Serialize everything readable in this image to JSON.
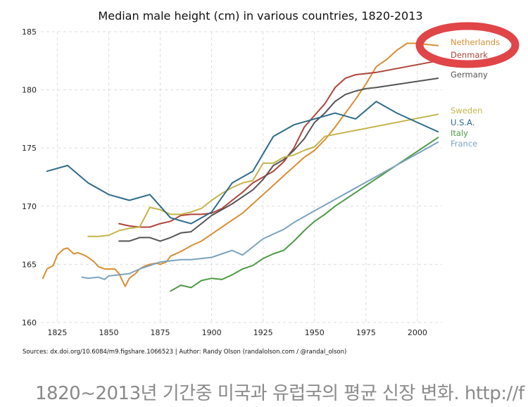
{
  "chart_data": {
    "type": "line",
    "title": "Median male height (cm) in various countries, 1820-2013",
    "xlabel": "",
    "ylabel": "",
    "xlim": [
      1817,
      2012
    ],
    "ylim": [
      160,
      185
    ],
    "x_ticks": [
      1825,
      1850,
      1875,
      1900,
      1925,
      1950,
      1975,
      2000
    ],
    "y_ticks": [
      160,
      165,
      170,
      175,
      180,
      185
    ],
    "grid": true,
    "legend": "labels at line ends (right)",
    "series": [
      {
        "name": "Netherlands",
        "color": "#D98E33",
        "x": [
          1818,
          1820,
          1823,
          1825,
          1828,
          1830,
          1833,
          1835,
          1838,
          1840,
          1843,
          1845,
          1848,
          1850,
          1853,
          1855,
          1858,
          1860,
          1863,
          1865,
          1868,
          1870,
          1873,
          1875,
          1878,
          1880,
          1885,
          1890,
          1895,
          1900,
          1905,
          1910,
          1915,
          1920,
          1925,
          1930,
          1935,
          1940,
          1945,
          1950,
          1955,
          1960,
          1965,
          1970,
          1975,
          1980,
          1985,
          1990,
          1995,
          2000,
          2005,
          2010
        ],
        "y": [
          163.8,
          164.6,
          164.9,
          165.8,
          166.3,
          166.4,
          165.9,
          166.0,
          165.8,
          165.6,
          165.2,
          164.8,
          164.6,
          164.6,
          164.6,
          164.2,
          163.1,
          163.8,
          164.2,
          164.6,
          164.9,
          165.0,
          165.1,
          165.0,
          165.2,
          165.7,
          166.1,
          166.6,
          167.0,
          167.6,
          168.2,
          168.8,
          169.4,
          170.2,
          171.0,
          171.8,
          172.6,
          173.4,
          174.2,
          174.8,
          175.7,
          176.8,
          178.0,
          179.2,
          180.5,
          182.0,
          182.6,
          183.4,
          184.0,
          184.0,
          183.9,
          183.8
        ]
      },
      {
        "name": "Denmark",
        "color": "#B0443A",
        "x": [
          1855,
          1860,
          1865,
          1870,
          1875,
          1880,
          1885,
          1890,
          1895,
          1900,
          1905,
          1910,
          1915,
          1920,
          1925,
          1930,
          1935,
          1940,
          1945,
          1950,
          1955,
          1960,
          1965,
          1970,
          1975,
          1980,
          2010
        ],
        "y": [
          168.5,
          168.3,
          168.2,
          168.2,
          168.5,
          168.7,
          169.2,
          169.3,
          169.3,
          169.4,
          169.8,
          170.5,
          171.2,
          172.0,
          172.5,
          173.0,
          173.8,
          175.0,
          176.8,
          177.8,
          178.8,
          180.2,
          181.0,
          181.3,
          181.4,
          181.5,
          182.5
        ]
      },
      {
        "name": "Germany",
        "color": "#555555",
        "x": [
          1855,
          1860,
          1865,
          1870,
          1875,
          1880,
          1885,
          1890,
          1895,
          1900,
          1905,
          1910,
          1915,
          1920,
          1925,
          1930,
          1935,
          1940,
          1945,
          1950,
          1955,
          1960,
          1965,
          1970,
          1975,
          1980,
          2010
        ],
        "y": [
          167.0,
          167.0,
          167.3,
          167.3,
          167.0,
          167.3,
          167.7,
          167.8,
          168.5,
          169.2,
          169.7,
          170.2,
          170.8,
          171.4,
          172.3,
          173.5,
          174.0,
          174.8,
          175.8,
          177.2,
          178.0,
          179.0,
          179.6,
          179.9,
          180.1,
          180.2,
          181.0
        ]
      },
      {
        "name": "Sweden",
        "color": "#C4B44A",
        "x": [
          1840,
          1845,
          1850,
          1855,
          1860,
          1865,
          1870,
          1875,
          1880,
          1885,
          1890,
          1895,
          1900,
          1905,
          1910,
          1915,
          1920,
          1925,
          1930,
          1935,
          1940,
          1945,
          1950,
          1955,
          2010
        ],
        "y": [
          167.4,
          167.4,
          167.5,
          167.9,
          168.1,
          168.2,
          169.9,
          169.7,
          169.3,
          169.3,
          169.5,
          169.8,
          170.5,
          171.1,
          171.6,
          172.0,
          172.2,
          173.7,
          173.7,
          174.2,
          174.4,
          174.8,
          175.1,
          176.0,
          177.9
        ]
      },
      {
        "name": "U.S.A.",
        "color": "#2F6B8A",
        "x": [
          1820,
          1830,
          1840,
          1850,
          1860,
          1870,
          1880,
          1890,
          1900,
          1910,
          1920,
          1930,
          1940,
          1950,
          1960,
          1970,
          1980,
          1990,
          2000,
          2010
        ],
        "y": [
          173.0,
          173.5,
          172.0,
          171.0,
          170.5,
          171.0,
          169.0,
          168.5,
          169.5,
          172.0,
          173.0,
          176.0,
          177.0,
          177.5,
          178.0,
          177.5,
          179.0,
          178.0,
          177.2,
          176.4
        ]
      },
      {
        "name": "Italy",
        "color": "#4E9A45",
        "x": [
          1880,
          1885,
          1890,
          1895,
          1900,
          1905,
          1910,
          1915,
          1920,
          1925,
          1930,
          1935,
          1940,
          1945,
          1950,
          1955,
          1960,
          2010
        ],
        "y": [
          162.7,
          163.2,
          163.0,
          163.6,
          163.8,
          163.7,
          164.1,
          164.6,
          164.9,
          165.5,
          165.9,
          166.2,
          167.0,
          167.9,
          168.7,
          169.3,
          170.0,
          175.9
        ]
      },
      {
        "name": "France",
        "color": "#7BA3BF",
        "x": [
          1837,
          1840,
          1845,
          1848,
          1850,
          1855,
          1860,
          1865,
          1870,
          1875,
          1880,
          1885,
          1890,
          1895,
          1900,
          1905,
          1910,
          1915,
          1920,
          1925,
          1930,
          1935,
          1940,
          1950,
          2010
        ],
        "y": [
          163.9,
          163.8,
          163.9,
          163.7,
          164.0,
          164.1,
          164.2,
          164.6,
          164.9,
          165.2,
          165.3,
          165.4,
          165.4,
          165.5,
          165.6,
          165.9,
          166.2,
          165.8,
          166.5,
          167.2,
          167.6,
          168.0,
          168.6,
          169.6,
          175.5
        ]
      }
    ]
  },
  "source_text": "Sources: dx.doi.org/10.6084/m9.figshare.1066523 | Author: Randy Olson (randalolson.com / @randal_olson)",
  "caption_text": "1820~2013년 기간중 미국과 유럽국의 평균 신장 변화. http://f",
  "highlight_color": "#E04548"
}
